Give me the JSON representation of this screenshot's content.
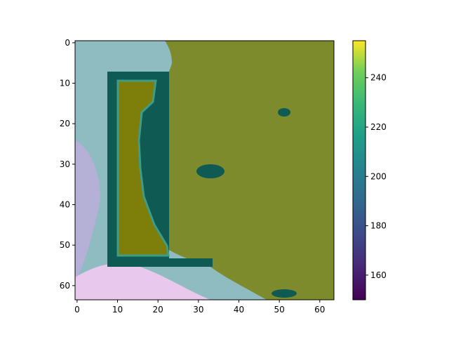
{
  "chart_data": [
    {
      "type": "heatmap",
      "title": "",
      "xlabel": "",
      "ylabel": "",
      "xlim": [
        -0.5,
        63.5
      ],
      "ylim": [
        63.5,
        -0.5
      ],
      "x_ticks": [
        0,
        10,
        20,
        30,
        40,
        50,
        60
      ],
      "y_ticks": [
        0,
        10,
        20,
        30,
        40,
        50,
        60
      ],
      "grid": false,
      "image_description_regions": [
        {
          "name": "background-teal",
          "value_approx": 205
        },
        {
          "name": "olive-blob",
          "value_approx": 230
        },
        {
          "name": "rectangle-outline",
          "value_approx": 195
        },
        {
          "name": "rectangle-fill",
          "value_approx": 235
        }
      ]
    },
    {
      "type": "colorbar",
      "colormap": "viridis",
      "range": [
        150,
        255
      ],
      "ticks": [
        160,
        180,
        200,
        220,
        240
      ]
    }
  ],
  "colors": {
    "background": "#8fbcc0",
    "blob": "#7d8b2c",
    "blob_dark": "#5f7c2a",
    "rect_outline": "#0f5a52",
    "rect_fill": "#7e7f0a",
    "rect_edge": "#3f9c86",
    "pink": "#e8c8ec",
    "lavender": "#b5b0d6"
  }
}
